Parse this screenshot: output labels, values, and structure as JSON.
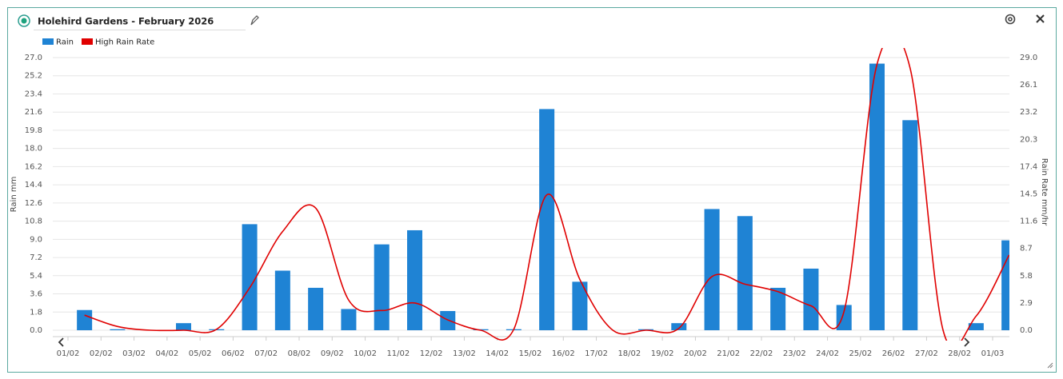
{
  "chart_data": {
    "type": "bar",
    "title": "Holehird Gardens - February 2026",
    "y_label": "Rain mm",
    "y2_label": "Rain Rate mm/hr",
    "categories": [
      "01/02",
      "02/02",
      "03/02",
      "04/02",
      "05/02",
      "06/02",
      "07/02",
      "08/02",
      "09/02",
      "10/02",
      "11/02",
      "12/02",
      "13/02",
      "14/02",
      "15/02",
      "16/02",
      "17/02",
      "18/02",
      "19/02",
      "20/02",
      "21/02",
      "22/02",
      "23/02",
      "24/02",
      "25/02",
      "26/02",
      "27/02",
      "28/02",
      "01/03"
    ],
    "series": [
      {
        "name": "Rain",
        "type": "bar",
        "axis": "y",
        "color": "#1f83d4",
        "values": [
          2.0,
          0.1,
          0,
          0.7,
          0.1,
          10.5,
          5.9,
          4.2,
          2.1,
          8.5,
          9.9,
          1.9,
          0.1,
          0.1,
          21.9,
          4.8,
          0,
          0.1,
          0.7,
          12.0,
          11.3,
          4.2,
          6.1,
          2.5,
          26.4,
          20.8,
          0,
          0.7,
          8.9
        ]
      },
      {
        "name": "High Rain Rate",
        "type": "line",
        "axis": "y2",
        "color": "#e00000",
        "values": [
          1.6,
          0.4,
          0,
          0,
          0.1,
          4.5,
          10.5,
          13.0,
          3.2,
          2.1,
          2.9,
          1.1,
          0,
          0.1,
          14.4,
          5.4,
          0,
          0,
          0.2,
          5.7,
          4.9,
          4.1,
          2.6,
          2.0,
          28.3,
          27.9,
          0,
          1.5,
          8.0
        ]
      }
    ],
    "ylim": [
      0,
      27
    ],
    "yticks": [
      {
        "value": 0,
        "label": "0.0"
      },
      {
        "value": 1.8,
        "label": "1.8"
      },
      {
        "value": 3.6,
        "label": "3.6"
      },
      {
        "value": 5.4,
        "label": "5.4"
      },
      {
        "value": 7.2,
        "label": "7.2"
      },
      {
        "value": 9,
        "label": "9.0"
      },
      {
        "value": 10.8,
        "label": "10.8"
      },
      {
        "value": 12.6,
        "label": "12.6"
      },
      {
        "value": 14.4,
        "label": "14.4"
      },
      {
        "value": 16.2,
        "label": "16.2"
      },
      {
        "value": 18,
        "label": "18.0"
      },
      {
        "value": 19.8,
        "label": "19.8"
      },
      {
        "value": 21.6,
        "label": "21.6"
      },
      {
        "value": 23.4,
        "label": "23.4"
      },
      {
        "value": 25.2,
        "label": "25.2"
      },
      {
        "value": 27,
        "label": "27.0"
      }
    ],
    "y2lim": [
      0,
      29
    ],
    "y2ticks": [
      {
        "value": 0,
        "label": "0.0"
      },
      {
        "value": 2.9,
        "label": "2.9"
      },
      {
        "value": 5.8,
        "label": "5.8"
      },
      {
        "value": 8.7,
        "label": "8.7"
      },
      {
        "value": 11.6,
        "label": "11.6"
      },
      {
        "value": 14.5,
        "label": "14.5"
      },
      {
        "value": 17.4,
        "label": "17.4"
      },
      {
        "value": 20.3,
        "label": "20.3"
      },
      {
        "value": 23.2,
        "label": "23.2"
      },
      {
        "value": 26.1,
        "label": "26.1"
      },
      {
        "value": 29,
        "label": "29.0"
      }
    ],
    "grid": true
  }
}
